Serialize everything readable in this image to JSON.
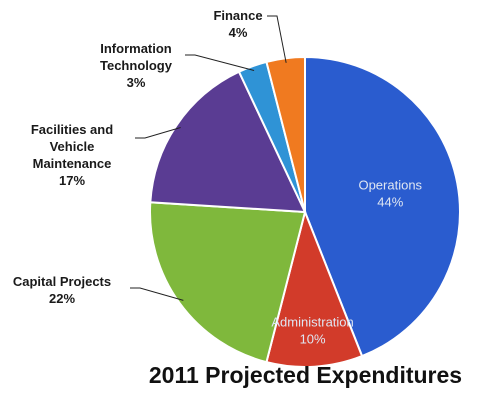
{
  "chart_data": {
    "type": "pie",
    "title": "2011 Projected Expenditures",
    "categories": [
      "Operations",
      "Administration",
      "Capital Projects",
      "Facilities and Vehicle Maintenance",
      "Information Technology",
      "Finance"
    ],
    "label_lines": [
      [
        "Operations"
      ],
      [
        "Administration"
      ],
      [
        "Capital Projects"
      ],
      [
        "Facilities and",
        "Vehicle",
        "Maintenance"
      ],
      [
        "Information",
        "Technology"
      ],
      [
        "Finance"
      ]
    ],
    "values": [
      44,
      10,
      22,
      17,
      3,
      4
    ],
    "percent_labels": [
      "44%",
      "10%",
      "22%",
      "17%",
      "3%",
      "4%"
    ],
    "colors": [
      "#2a5ccf",
      "#d23b2a",
      "#7fb83c",
      "#5a3c93",
      "#2f93d6",
      "#f07a20"
    ],
    "label_placement": [
      "inside",
      "inside",
      "outside-left",
      "outside-left",
      "outside-top",
      "outside-top"
    ]
  }
}
